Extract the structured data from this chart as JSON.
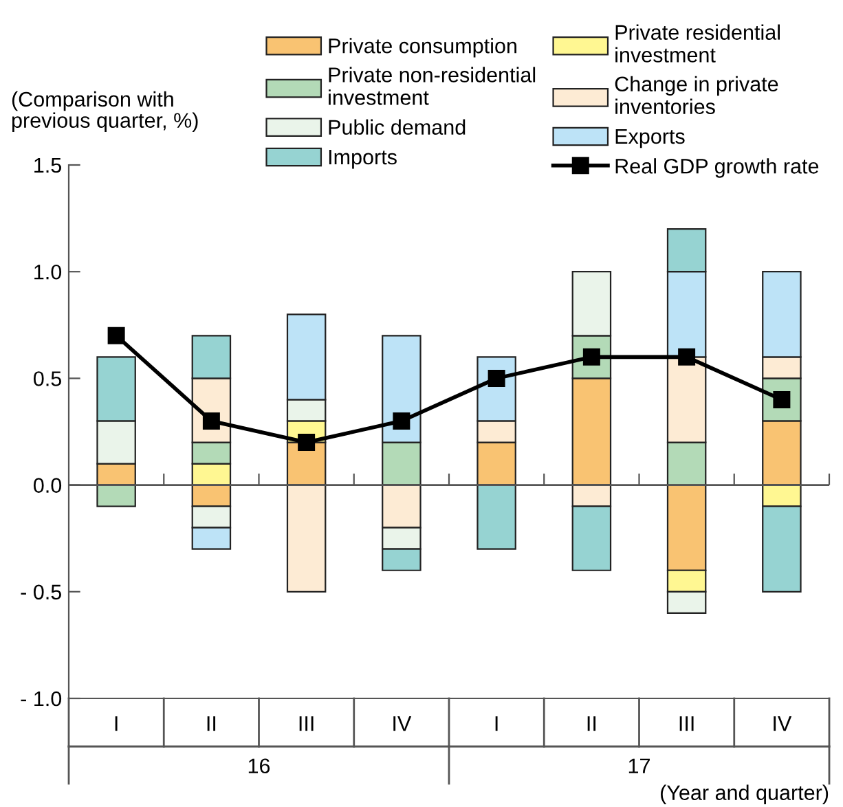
{
  "chart_data": {
    "type": "bar",
    "stacked": true,
    "ylabel": "(Comparison with previous quarter, %)",
    "xlabel": "(Year and quarter)",
    "categories": [
      "I",
      "II",
      "III",
      "IV",
      "I",
      "II",
      "III",
      "IV"
    ],
    "annotations": [
      "16",
      "17"
    ],
    "ylim": [
      -1.0,
      1.5
    ],
    "yticks": [
      {
        "value": -1.0,
        "label": "- 1.0"
      },
      {
        "value": -0.5,
        "label": "- 0.5"
      },
      {
        "value": 0.0,
        "label": "0.0"
      },
      {
        "value": 0.5,
        "label": "0.5"
      },
      {
        "value": 1.0,
        "label": "1.0"
      },
      {
        "value": 1.5,
        "label": "1.5"
      }
    ],
    "ref_lines": [
      {
        "axis": "y",
        "value": 0.0,
        "color": "#555555"
      }
    ],
    "legend": "top",
    "series": [
      {
        "name": "Private consumption",
        "color": "#f9c372",
        "values": [
          0.1,
          -0.1,
          0.2,
          null,
          0.2,
          0.5,
          -0.4,
          0.3
        ]
      },
      {
        "name": "Private residential investment",
        "color": "#fff792",
        "values": [
          null,
          0.1,
          0.1,
          null,
          null,
          null,
          -0.1,
          -0.1
        ]
      },
      {
        "name": "Private non-residential investment",
        "color": "#b3dab7",
        "values": [
          -0.1,
          0.1,
          null,
          0.2,
          null,
          0.2,
          0.2,
          0.2
        ]
      },
      {
        "name": "Change in private inventories",
        "color": "#fdebd4",
        "values": [
          null,
          0.3,
          -0.5,
          -0.2,
          0.1,
          -0.1,
          0.4,
          0.1
        ]
      },
      {
        "name": "Public demand",
        "color": "#eaf4ea",
        "values": [
          0.2,
          -0.1,
          0.1,
          -0.1,
          null,
          0.3,
          -0.1,
          null
        ]
      },
      {
        "name": "Exports",
        "color": "#bde3f7",
        "values": [
          null,
          -0.1,
          0.4,
          0.5,
          0.3,
          null,
          0.4,
          0.4
        ]
      },
      {
        "name": "Imports",
        "color": "#96d3d2",
        "values": [
          0.3,
          0.2,
          null,
          -0.1,
          -0.3,
          -0.3,
          0.2,
          -0.4
        ]
      },
      {
        "name": "Real GDP growth rate",
        "type": "line",
        "color": "#000000",
        "marker": "square",
        "line_style": "solid",
        "values": [
          0.7,
          0.3,
          0.2,
          0.3,
          0.5,
          0.6,
          0.6,
          0.4
        ]
      }
    ]
  }
}
